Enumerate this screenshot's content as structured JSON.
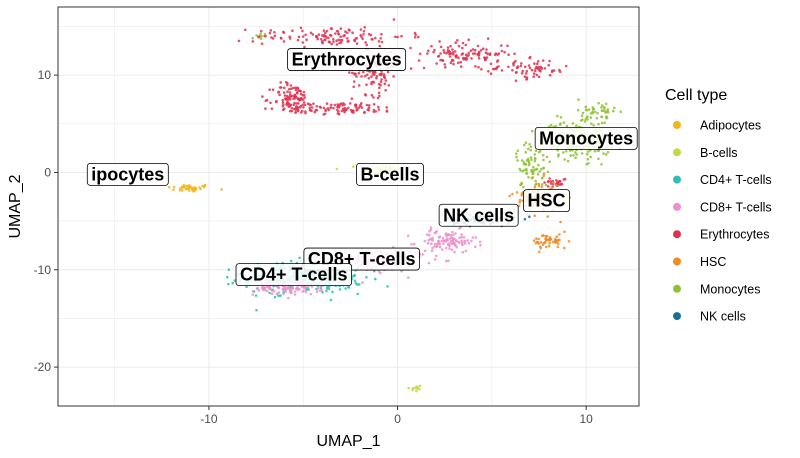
{
  "chart_data": {
    "type": "scatter",
    "xlabel": "UMAP_1",
    "ylabel": "UMAP_2",
    "xlim": [
      -18,
      12.8
    ],
    "ylim": [
      -24,
      17
    ],
    "x_ticks": [
      -10,
      0,
      10
    ],
    "y_ticks": [
      -20,
      -10,
      0,
      10
    ],
    "x_tick_labels": [
      "-10",
      "0",
      "10"
    ],
    "y_tick_labels": [
      "-20",
      "-10",
      "0",
      "10"
    ],
    "grid": true,
    "legend": {
      "title": "Cell type",
      "placement": "right"
    },
    "series": [
      {
        "name": "Adipocytes",
        "color": "#F2B51C",
        "clusters": [
          {
            "cx": -11,
            "cy": -1.6,
            "sx": 0.6,
            "sy": 0.2,
            "n": 40
          },
          {
            "cx": -0.5,
            "cy": 0.1,
            "sx": 0.25,
            "sy": 0.2,
            "n": 15
          }
        ]
      },
      {
        "name": "B-cells",
        "color": "#C2D943",
        "clusters": [
          {
            "cx": -0.8,
            "cy": 0.2,
            "sx": 0.6,
            "sy": 0.35,
            "n": 70
          },
          {
            "cx": 0.9,
            "cy": -22.2,
            "sx": 0.2,
            "sy": 0.2,
            "n": 10
          }
        ]
      },
      {
        "name": "CD4+ T-cells",
        "color": "#2CBFB0",
        "clusters": [
          {
            "cx": -5.0,
            "cy": -10.8,
            "sx": 1.6,
            "sy": 0.8,
            "n": 340
          }
        ]
      },
      {
        "name": "CD8+ T-cells",
        "color": "#EE8FCB",
        "clusters": [
          {
            "cx": -5.8,
            "cy": -11.8,
            "sx": 0.9,
            "sy": 0.4,
            "n": 110
          },
          {
            "cx": -1.2,
            "cy": -9.0,
            "sx": 1.3,
            "sy": 0.6,
            "n": 150
          },
          {
            "cx": 2.6,
            "cy": -7.1,
            "sx": 0.8,
            "sy": 0.6,
            "n": 110
          }
        ]
      },
      {
        "name": "Erythrocytes",
        "color": "#E03150",
        "clusters": [
          {
            "cx": -3.5,
            "cy": 14.0,
            "sx": 2.0,
            "sy": 0.5,
            "n": 120
          },
          {
            "cx": -5.6,
            "cy": 7.6,
            "sx": 0.5,
            "sy": 0.8,
            "n": 100
          },
          {
            "cx": -3.0,
            "cy": 6.6,
            "sx": 1.5,
            "sy": 0.3,
            "n": 100
          },
          {
            "cx": -1.2,
            "cy": 10.2,
            "sx": 0.6,
            "sy": 1.1,
            "n": 90
          },
          {
            "cx": 3.5,
            "cy": 12.2,
            "sx": 1.2,
            "sy": 0.6,
            "n": 110
          },
          {
            "cx": 6.8,
            "cy": 10.6,
            "sx": 1.2,
            "sy": 0.5,
            "n": 70
          },
          {
            "cx": 8.4,
            "cy": -1.0,
            "sx": 0.3,
            "sy": 0.25,
            "n": 25
          }
        ]
      },
      {
        "name": "HSC",
        "color": "#EE8C22",
        "clusters": [
          {
            "cx": 7.4,
            "cy": -2.5,
            "sx": 0.6,
            "sy": 0.9,
            "n": 90
          },
          {
            "cx": 8.1,
            "cy": -7.1,
            "sx": 0.5,
            "sy": 0.4,
            "n": 50
          }
        ]
      },
      {
        "name": "Monocytes",
        "color": "#8EC234",
        "clusters": [
          {
            "cx": 9.5,
            "cy": 3.3,
            "sx": 0.9,
            "sy": 1.0,
            "n": 180
          },
          {
            "cx": 7.1,
            "cy": 0.8,
            "sx": 0.4,
            "sy": 1.2,
            "n": 70
          },
          {
            "cx": 10.6,
            "cy": 6.0,
            "sx": 0.5,
            "sy": 0.8,
            "n": 50
          },
          {
            "cx": -7.3,
            "cy": 14.0,
            "sx": 0.2,
            "sy": 0.2,
            "n": 6
          }
        ]
      },
      {
        "name": "NK cells",
        "color": "#1A6E96",
        "clusters": [
          {
            "cx": 4.4,
            "cy": -4.9,
            "sx": 0.9,
            "sy": 0.3,
            "n": 60
          }
        ]
      }
    ],
    "annotations": [
      {
        "text": "Erythrocytes",
        "x": -2.7,
        "y": 11.6
      },
      {
        "text": "Monocytes",
        "x": 10.0,
        "y": 3.5
      },
      {
        "text": "ipocytes",
        "x": -14.3,
        "y": -0.2
      },
      {
        "text": "B-cells",
        "x": -0.4,
        "y": -0.2
      },
      {
        "text": "HSC",
        "x": 7.9,
        "y": -2.9
      },
      {
        "text": "NK cells",
        "x": 4.3,
        "y": -4.4
      },
      {
        "text": "CD8+ T-cells",
        "x": -1.9,
        "y": -8.9
      },
      {
        "text": "CD4+ T-cells",
        "x": -5.5,
        "y": -10.5
      }
    ]
  }
}
